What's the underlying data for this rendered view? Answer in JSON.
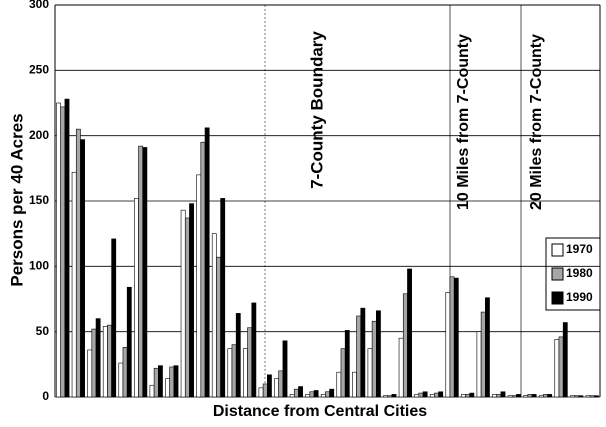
{
  "chart_data": {
    "type": "bar",
    "x_label": "Distance from Central Cities",
    "y_label": "Persons per 40 Acres",
    "annotations": [
      "7-County Boundary",
      "10 Miles from 7-County",
      "20 Miles from 7-County"
    ],
    "categories": [
      null,
      null,
      null,
      null,
      null,
      null,
      null,
      null,
      null,
      null,
      null,
      null,
      null,
      null,
      null,
      null,
      null,
      null,
      null,
      null,
      null,
      null,
      null,
      null,
      null,
      null,
      null,
      null,
      null,
      null,
      null,
      null,
      null,
      null,
      null
    ],
    "series": [
      {
        "name": "1970",
        "color": "#ffffff",
        "values": [
          225,
          172,
          36,
          54,
          26,
          152,
          9,
          14,
          143,
          170,
          125,
          37,
          37,
          7,
          14,
          2,
          2,
          2,
          19,
          19,
          37,
          1,
          45,
          2,
          2,
          80,
          2,
          50,
          2,
          1,
          1,
          1,
          44,
          1,
          1
        ]
      },
      {
        "name": "1980",
        "color": "#a6a6a6",
        "values": [
          222,
          205,
          52,
          55,
          38,
          192,
          22,
          23,
          137,
          195,
          107,
          40,
          53,
          10,
          20,
          6,
          4,
          4,
          37,
          62,
          58,
          1,
          79,
          3,
          3,
          92,
          2,
          65,
          2,
          1,
          2,
          2,
          46,
          1,
          1
        ]
      },
      {
        "name": "1990",
        "color": "#000000",
        "values": [
          228,
          197,
          60,
          121,
          84,
          191,
          24,
          24,
          148,
          206,
          152,
          64,
          72,
          17,
          43,
          8,
          5,
          6,
          51,
          68,
          66,
          2,
          98,
          4,
          4,
          91,
          3,
          76,
          4,
          2,
          2,
          2,
          57,
          1,
          1
        ]
      }
    ],
    "ylim": [
      0,
      300
    ],
    "yticks": [
      0,
      50,
      100,
      150,
      200,
      250,
      300
    ],
    "grid": true,
    "legend": "right"
  }
}
